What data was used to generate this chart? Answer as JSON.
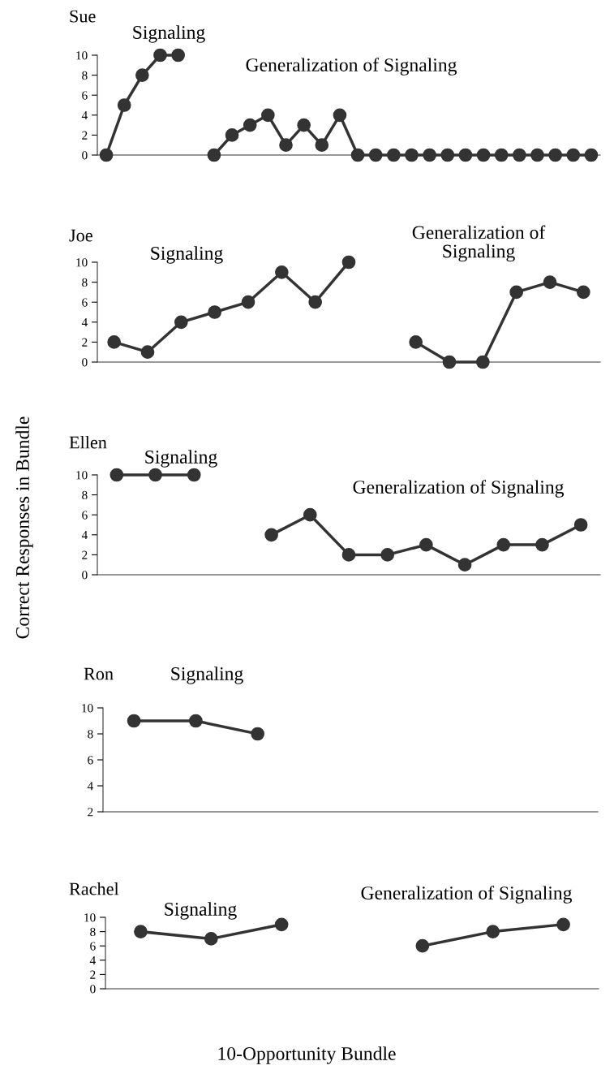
{
  "chart_data": [
    {
      "type": "line",
      "title": "Sue",
      "categories": [
        null,
        null,
        null,
        null,
        null,
        null,
        null,
        null,
        null,
        null,
        null,
        null,
        null,
        null,
        null,
        null,
        null,
        null,
        null,
        null,
        null,
        null,
        null,
        null,
        null,
        null,
        null,
        null
      ],
      "marker": "circle",
      "line_style": "solid",
      "tick_labels": "y",
      "ylim": [
        0,
        10
      ],
      "yticks": [
        0,
        2,
        4,
        6,
        8,
        10
      ],
      "annotations": [
        "Signaling",
        "Generalization of Signaling"
      ],
      "series": [
        {
          "color": "#333333",
          "values": [
            0,
            5,
            8,
            10,
            10,
            null,
            null,
            null,
            null,
            null,
            null,
            null,
            null,
            null,
            null,
            null,
            null,
            null,
            null,
            null,
            null,
            null,
            null,
            null,
            null,
            null,
            null,
            null
          ]
        },
        {
          "color": "#333333",
          "values": [
            null,
            null,
            null,
            null,
            null,
            null,
            0,
            2,
            3,
            4,
            1,
            3,
            1,
            4,
            0,
            0,
            0,
            0,
            0,
            0,
            0,
            0,
            0,
            0,
            0,
            0,
            0,
            0
          ]
        }
      ]
    },
    {
      "type": "line",
      "title": "Joe",
      "categories": [
        null,
        null,
        null,
        null,
        null,
        null,
        null,
        null,
        null,
        null,
        null,
        null,
        null,
        null,
        null
      ],
      "marker": "circle",
      "line_style": "solid",
      "tick_labels": "y",
      "ylim": [
        0,
        10
      ],
      "yticks": [
        0,
        2,
        4,
        6,
        8,
        10
      ],
      "annotations": [
        "Signaling",
        "Generalization of\nSignaling"
      ],
      "series": [
        {
          "color": "#333333",
          "values": [
            2,
            1,
            4,
            5,
            6,
            9,
            6,
            10,
            null,
            null,
            null,
            null,
            null,
            null,
            null
          ]
        },
        {
          "color": "#333333",
          "values": [
            null,
            null,
            null,
            null,
            null,
            null,
            null,
            null,
            null,
            2,
            0,
            0,
            7,
            8,
            7
          ]
        }
      ]
    },
    {
      "type": "line",
      "title": "Ellen",
      "ylabel": "Correct Responses in Bundle",
      "categories": [
        null,
        null,
        null,
        null,
        null,
        null,
        null,
        null,
        null,
        null,
        null,
        null,
        null
      ],
      "marker": "circle",
      "line_style": "solid",
      "tick_labels": "y",
      "ylim": [
        0,
        10
      ],
      "yticks": [
        0,
        2,
        4,
        6,
        8,
        10
      ],
      "annotations": [
        "Signaling",
        "Generalization of Signaling"
      ],
      "series": [
        {
          "color": "#333333",
          "values": [
            10,
            10,
            10,
            null,
            null,
            null,
            null,
            null,
            null,
            null,
            null,
            null,
            null
          ]
        },
        {
          "color": "#333333",
          "values": [
            null,
            null,
            null,
            null,
            4,
            6,
            2,
            2,
            3,
            1,
            3,
            3,
            5
          ]
        }
      ]
    },
    {
      "type": "line",
      "title": "Ron",
      "categories": [
        null,
        null,
        null,
        null,
        null,
        null,
        null,
        null
      ],
      "marker": "circle",
      "line_style": "solid",
      "tick_labels": "y",
      "ylim": [
        2,
        10
      ],
      "yticks": [
        2,
        4,
        6,
        8,
        10
      ],
      "annotations": [
        "Signaling"
      ],
      "series": [
        {
          "color": "#333333",
          "values": [
            9,
            9,
            8,
            null,
            null,
            null,
            null,
            null
          ]
        }
      ]
    },
    {
      "type": "line",
      "title": "Rachel",
      "xlabel": "10-Opportunity Bundle",
      "categories": [
        null,
        null,
        null,
        null,
        null,
        null,
        null
      ],
      "marker": "circle",
      "line_style": "solid",
      "tick_labels": "y",
      "ylim": [
        0,
        10
      ],
      "yticks": [
        0,
        2,
        4,
        6,
        8,
        10
      ],
      "annotations": [
        "Signaling",
        "Generalization of Signaling"
      ],
      "series": [
        {
          "color": "#333333",
          "values": [
            8,
            7,
            9,
            null,
            null,
            null,
            null
          ]
        },
        {
          "color": "#333333",
          "values": [
            null,
            null,
            null,
            null,
            6,
            8,
            9
          ]
        }
      ]
    }
  ]
}
